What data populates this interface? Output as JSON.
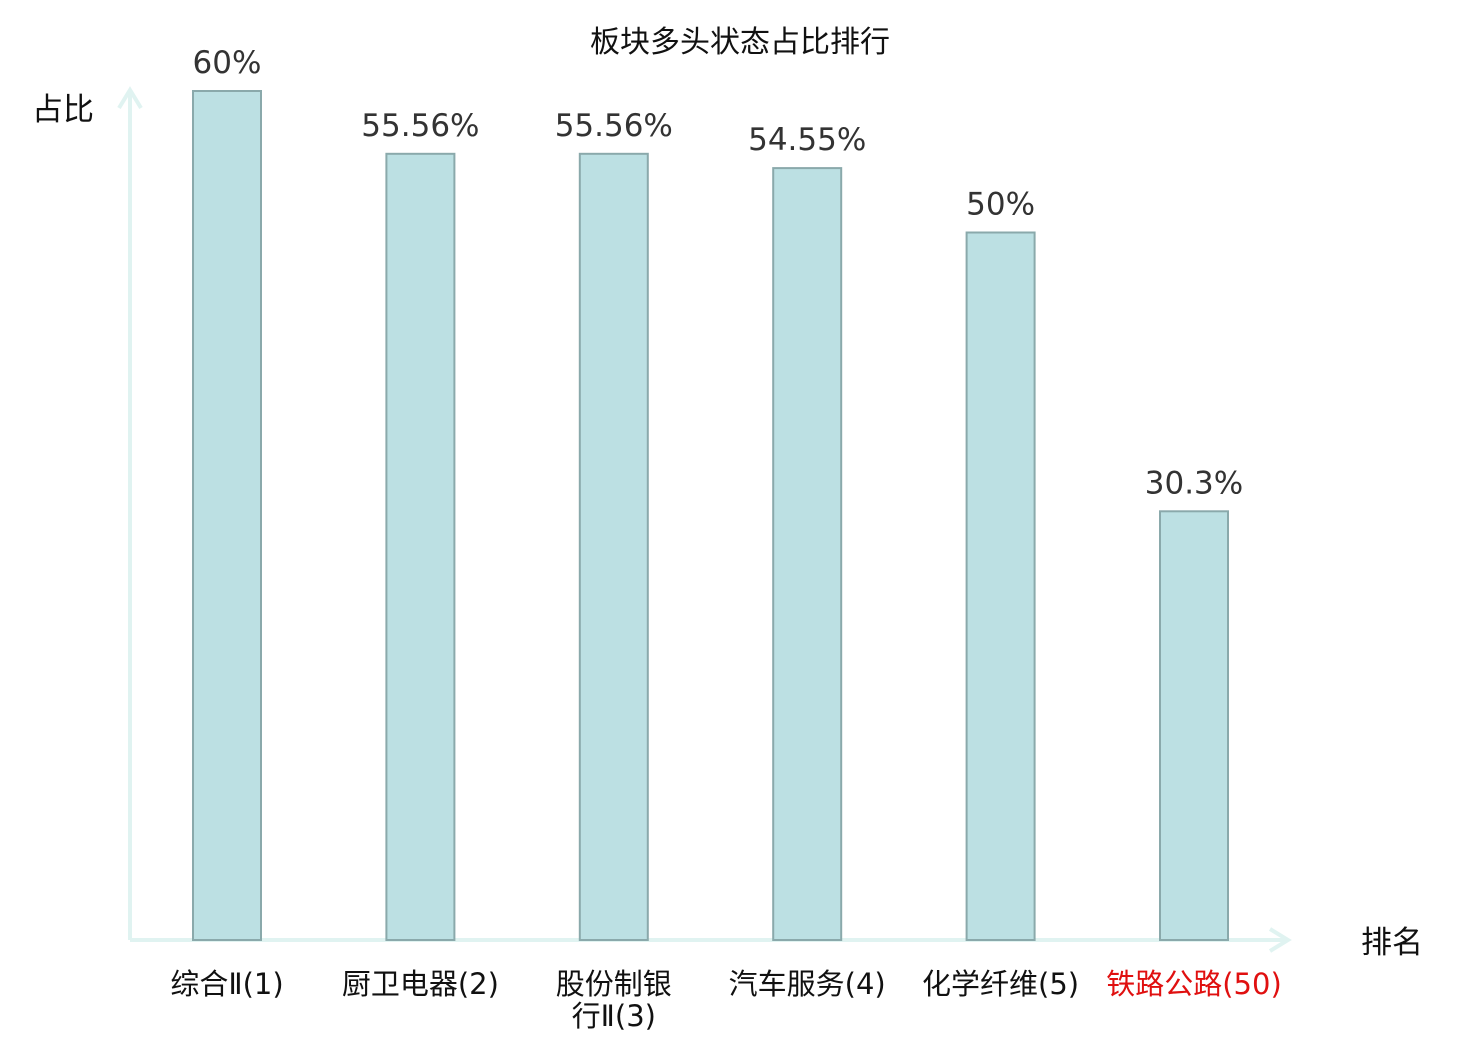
{
  "chart_data": {
    "type": "bar",
    "title": "板块多头状态占比排行",
    "ylabel": "占比",
    "xlabel": "排名",
    "ylim": [
      0,
      60
    ],
    "grid": false,
    "legend": "none",
    "categories": [
      "综合Ⅱ(1)",
      "厨卫电器(2)",
      "股份制银行Ⅱ(3)",
      "汽车服务(4)",
      "化学纤维(5)",
      "铁路公路(50)"
    ],
    "category_lines": [
      [
        "综合Ⅱ(1)"
      ],
      [
        "厨卫电器(2)"
      ],
      [
        "股份制银",
        "行Ⅱ(3)"
      ],
      [
        "汽车服务(4)"
      ],
      [
        "化学纤维(5)"
      ],
      [
        "铁路公路(50)"
      ]
    ],
    "values": [
      60,
      55.56,
      55.56,
      54.55,
      50,
      30.3
    ],
    "value_labels": [
      "60%",
      "55.56%",
      "55.56%",
      "54.55%",
      "50%",
      "30.3%"
    ],
    "highlight_index": 5
  },
  "colors": {
    "bar_fill": "#bce0e3",
    "bar_stroke": "#8aa9ab",
    "axis": "#e0f3f1",
    "label_text": "#111111",
    "value_text": "#333333",
    "highlight": "#e01010"
  }
}
